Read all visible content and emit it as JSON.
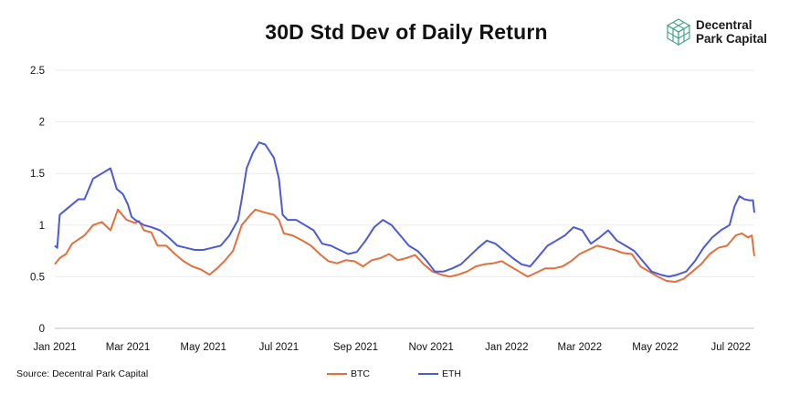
{
  "chart_data": {
    "type": "line",
    "title": "30D Std Dev of Daily Return",
    "xlabel": "",
    "ylabel": "",
    "ylim": [
      0,
      2.5
    ],
    "yticks": [
      0,
      0.5,
      1,
      1.5,
      2,
      2.5
    ],
    "ytick_labels": [
      "0",
      "0.5",
      "1",
      "1.5",
      "2",
      "2.5"
    ],
    "xlim": [
      "2021-01-01",
      "2022-07-20"
    ],
    "xticks": [
      "2021-01-01",
      "2021-03-01",
      "2021-05-01",
      "2021-07-01",
      "2021-09-01",
      "2021-11-01",
      "2022-01-01",
      "2022-03-01",
      "2022-05-01",
      "2022-07-01"
    ],
    "xtick_labels": [
      "Jan 2021",
      "Mar 2021",
      "May 2021",
      "Jul 2021",
      "Sep 2021",
      "Nov 2021",
      "Jan 2022",
      "Mar 2022",
      "May 2022",
      "Jul 2022"
    ],
    "grid": true,
    "legend_position": "bottom-center",
    "series": [
      {
        "name": "BTC",
        "color": "#E2703F",
        "points": [
          [
            "2021-01-01",
            0.62
          ],
          [
            "2021-01-05",
            0.68
          ],
          [
            "2021-01-10",
            0.72
          ],
          [
            "2021-01-15",
            0.82
          ],
          [
            "2021-01-20",
            0.86
          ],
          [
            "2021-01-25",
            0.9
          ],
          [
            "2021-02-01",
            1.0
          ],
          [
            "2021-02-08",
            1.03
          ],
          [
            "2021-02-15",
            0.95
          ],
          [
            "2021-02-21",
            1.15
          ],
          [
            "2021-02-28",
            1.05
          ],
          [
            "2021-03-07",
            1.02
          ],
          [
            "2021-03-10",
            1.04
          ],
          [
            "2021-03-14",
            0.95
          ],
          [
            "2021-03-20",
            0.93
          ],
          [
            "2021-03-25",
            0.8
          ],
          [
            "2021-04-01",
            0.8
          ],
          [
            "2021-04-08",
            0.72
          ],
          [
            "2021-04-15",
            0.65
          ],
          [
            "2021-04-22",
            0.6
          ],
          [
            "2021-04-29",
            0.57
          ],
          [
            "2021-05-06",
            0.52
          ],
          [
            "2021-05-12",
            0.58
          ],
          [
            "2021-05-18",
            0.65
          ],
          [
            "2021-05-25",
            0.75
          ],
          [
            "2021-06-01",
            1.0
          ],
          [
            "2021-06-08",
            1.1
          ],
          [
            "2021-06-12",
            1.15
          ],
          [
            "2021-06-20",
            1.12
          ],
          [
            "2021-06-27",
            1.1
          ],
          [
            "2021-07-01",
            1.05
          ],
          [
            "2021-07-05",
            0.92
          ],
          [
            "2021-07-12",
            0.9
          ],
          [
            "2021-07-20",
            0.85
          ],
          [
            "2021-07-27",
            0.8
          ],
          [
            "2021-08-03",
            0.72
          ],
          [
            "2021-08-10",
            0.65
          ],
          [
            "2021-08-17",
            0.63
          ],
          [
            "2021-08-24",
            0.66
          ],
          [
            "2021-08-31",
            0.65
          ],
          [
            "2021-09-07",
            0.6
          ],
          [
            "2021-09-14",
            0.66
          ],
          [
            "2021-09-21",
            0.68
          ],
          [
            "2021-09-28",
            0.72
          ],
          [
            "2021-10-05",
            0.66
          ],
          [
            "2021-10-12",
            0.68
          ],
          [
            "2021-10-19",
            0.71
          ],
          [
            "2021-10-26",
            0.62
          ],
          [
            "2021-11-02",
            0.55
          ],
          [
            "2021-11-09",
            0.52
          ],
          [
            "2021-11-16",
            0.5
          ],
          [
            "2021-11-23",
            0.52
          ],
          [
            "2021-11-30",
            0.55
          ],
          [
            "2021-12-07",
            0.6
          ],
          [
            "2021-12-14",
            0.62
          ],
          [
            "2021-12-21",
            0.63
          ],
          [
            "2021-12-28",
            0.65
          ],
          [
            "2022-01-04",
            0.6
          ],
          [
            "2022-01-11",
            0.55
          ],
          [
            "2022-01-18",
            0.5
          ],
          [
            "2022-01-25",
            0.54
          ],
          [
            "2022-02-01",
            0.58
          ],
          [
            "2022-02-08",
            0.58
          ],
          [
            "2022-02-15",
            0.6
          ],
          [
            "2022-02-22",
            0.65
          ],
          [
            "2022-03-01",
            0.72
          ],
          [
            "2022-03-08",
            0.76
          ],
          [
            "2022-03-15",
            0.8
          ],
          [
            "2022-03-22",
            0.78
          ],
          [
            "2022-03-29",
            0.76
          ],
          [
            "2022-04-05",
            0.73
          ],
          [
            "2022-04-12",
            0.72
          ],
          [
            "2022-04-19",
            0.6
          ],
          [
            "2022-04-26",
            0.55
          ],
          [
            "2022-05-03",
            0.5
          ],
          [
            "2022-05-10",
            0.46
          ],
          [
            "2022-05-17",
            0.45
          ],
          [
            "2022-05-24",
            0.48
          ],
          [
            "2022-05-31",
            0.55
          ],
          [
            "2022-06-07",
            0.62
          ],
          [
            "2022-06-14",
            0.72
          ],
          [
            "2022-06-21",
            0.78
          ],
          [
            "2022-06-28",
            0.8
          ],
          [
            "2022-07-05",
            0.9
          ],
          [
            "2022-07-10",
            0.92
          ],
          [
            "2022-07-15",
            0.88
          ],
          [
            "2022-07-18",
            0.9
          ],
          [
            "2022-07-20",
            0.7
          ]
        ]
      },
      {
        "name": "ETH",
        "color": "#4C5BD4",
        "points": [
          [
            "2021-01-01",
            0.8
          ],
          [
            "2021-01-03",
            0.78
          ],
          [
            "2021-01-05",
            1.1
          ],
          [
            "2021-01-10",
            1.15
          ],
          [
            "2021-01-15",
            1.2
          ],
          [
            "2021-01-20",
            1.25
          ],
          [
            "2021-01-25",
            1.25
          ],
          [
            "2021-02-01",
            1.45
          ],
          [
            "2021-02-08",
            1.5
          ],
          [
            "2021-02-15",
            1.55
          ],
          [
            "2021-02-20",
            1.35
          ],
          [
            "2021-02-25",
            1.3
          ],
          [
            "2021-03-01",
            1.2
          ],
          [
            "2021-03-04",
            1.08
          ],
          [
            "2021-03-07",
            1.05
          ],
          [
            "2021-03-14",
            1.0
          ],
          [
            "2021-03-20",
            0.98
          ],
          [
            "2021-03-27",
            0.95
          ],
          [
            "2021-04-03",
            0.88
          ],
          [
            "2021-04-10",
            0.8
          ],
          [
            "2021-04-17",
            0.78
          ],
          [
            "2021-04-24",
            0.76
          ],
          [
            "2021-05-01",
            0.76
          ],
          [
            "2021-05-08",
            0.78
          ],
          [
            "2021-05-15",
            0.8
          ],
          [
            "2021-05-22",
            0.9
          ],
          [
            "2021-05-29",
            1.05
          ],
          [
            "2021-06-01",
            1.25
          ],
          [
            "2021-06-05",
            1.55
          ],
          [
            "2021-06-10",
            1.7
          ],
          [
            "2021-06-15",
            1.8
          ],
          [
            "2021-06-20",
            1.78
          ],
          [
            "2021-06-27",
            1.65
          ],
          [
            "2021-07-01",
            1.45
          ],
          [
            "2021-07-04",
            1.1
          ],
          [
            "2021-07-08",
            1.05
          ],
          [
            "2021-07-15",
            1.05
          ],
          [
            "2021-07-22",
            1.0
          ],
          [
            "2021-07-29",
            0.95
          ],
          [
            "2021-08-05",
            0.82
          ],
          [
            "2021-08-12",
            0.8
          ],
          [
            "2021-08-19",
            0.76
          ],
          [
            "2021-08-26",
            0.72
          ],
          [
            "2021-09-02",
            0.74
          ],
          [
            "2021-09-09",
            0.85
          ],
          [
            "2021-09-16",
            0.98
          ],
          [
            "2021-09-23",
            1.05
          ],
          [
            "2021-09-30",
            1.0
          ],
          [
            "2021-10-07",
            0.9
          ],
          [
            "2021-10-14",
            0.8
          ],
          [
            "2021-10-21",
            0.75
          ],
          [
            "2021-10-28",
            0.66
          ],
          [
            "2021-11-04",
            0.55
          ],
          [
            "2021-11-11",
            0.55
          ],
          [
            "2021-11-18",
            0.58
          ],
          [
            "2021-11-25",
            0.62
          ],
          [
            "2021-12-02",
            0.7
          ],
          [
            "2021-12-09",
            0.78
          ],
          [
            "2021-12-16",
            0.85
          ],
          [
            "2021-12-23",
            0.82
          ],
          [
            "2021-12-30",
            0.75
          ],
          [
            "2022-01-06",
            0.68
          ],
          [
            "2022-01-13",
            0.62
          ],
          [
            "2022-01-20",
            0.6
          ],
          [
            "2022-01-27",
            0.7
          ],
          [
            "2022-02-03",
            0.8
          ],
          [
            "2022-02-10",
            0.85
          ],
          [
            "2022-02-17",
            0.9
          ],
          [
            "2022-02-24",
            0.98
          ],
          [
            "2022-03-03",
            0.95
          ],
          [
            "2022-03-10",
            0.82
          ],
          [
            "2022-03-17",
            0.88
          ],
          [
            "2022-03-24",
            0.95
          ],
          [
            "2022-03-31",
            0.85
          ],
          [
            "2022-04-07",
            0.8
          ],
          [
            "2022-04-14",
            0.75
          ],
          [
            "2022-04-21",
            0.65
          ],
          [
            "2022-04-28",
            0.55
          ],
          [
            "2022-05-05",
            0.52
          ],
          [
            "2022-05-12",
            0.5
          ],
          [
            "2022-05-19",
            0.52
          ],
          [
            "2022-05-26",
            0.55
          ],
          [
            "2022-06-02",
            0.65
          ],
          [
            "2022-06-09",
            0.78
          ],
          [
            "2022-06-16",
            0.88
          ],
          [
            "2022-06-23",
            0.95
          ],
          [
            "2022-06-30",
            1.0
          ],
          [
            "2022-07-04",
            1.18
          ],
          [
            "2022-07-08",
            1.28
          ],
          [
            "2022-07-12",
            1.25
          ],
          [
            "2022-07-16",
            1.24
          ],
          [
            "2022-07-19",
            1.24
          ],
          [
            "2022-07-20",
            1.12
          ]
        ]
      }
    ]
  },
  "source_label": "Source: Decentral Park Capital",
  "logo": {
    "line1": "Decentral",
    "line2": "Park Capital",
    "icon": "cube-grid-logo-icon"
  }
}
